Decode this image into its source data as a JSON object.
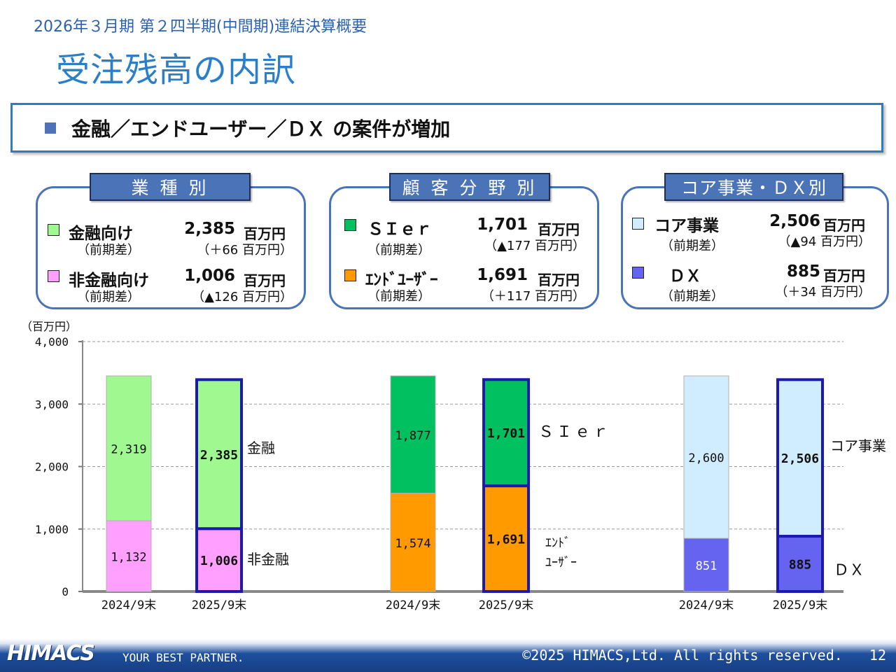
{
  "header": {
    "subtitle": "2026年３月期 第２四半期(中間期)連結決算概要",
    "title": "受注残高の内訳"
  },
  "headline": {
    "text": "金融／エンドユーザー／ＤＸ の案件が増加"
  },
  "panels": [
    {
      "tab": "業 種 別",
      "items": [
        {
          "label": "金融向け",
          "sub": "（前期差）",
          "value": "2,385",
          "unit": "百万円",
          "diff": "（＋66 百万円）",
          "color": "#a0f890"
        },
        {
          "label": "非金融向け",
          "sub": "（前期差）",
          "value": "1,006",
          "unit": "百万円",
          "diff": "（▲126 百万円）",
          "color": "#ffa0ff"
        }
      ]
    },
    {
      "tab": "顧 客 分 野 別",
      "items": [
        {
          "label": "ＳＩｅｒ",
          "sub": "（前期差）",
          "value": "1,701",
          "unit": "百万円",
          "diff": "（▲177 百万円）",
          "color": "#00c060"
        },
        {
          "label": "ｴﾝﾄﾞﾕｰｻﾞｰ",
          "sub": "（前期差）",
          "value": "1,691",
          "unit": "百万円",
          "diff": "（＋117 百万円）",
          "color": "#ff9a00"
        }
      ]
    },
    {
      "tab": "コア事業・ＤＸ別",
      "items": [
        {
          "label": "コア事業",
          "sub": "（前期差）",
          "value": "2,506",
          "unit": "百万円",
          "diff": "（▲94 百万円）",
          "color": "#d0ecff"
        },
        {
          "label": "ＤＸ",
          "sub": "（前期差）",
          "value": "885",
          "unit": "百万円",
          "diff": "（＋34 百万円）",
          "color": "#6464f0"
        }
      ]
    }
  ],
  "chart_data": {
    "type": "bar",
    "stacked": true,
    "ylabel": "（百万円）",
    "ylim": [
      0,
      4000
    ],
    "yticks": [
      0,
      1000,
      2000,
      3000,
      4000
    ],
    "ytick_labels": [
      "0",
      "1,000",
      "2,000",
      "3,000",
      "4,000"
    ],
    "grid": true,
    "groups": [
      {
        "name": "業種別",
        "categories": [
          "2024/9末",
          "2025/9末"
        ],
        "series": [
          {
            "name": "非金融",
            "values": [
              1132,
              1006
            ],
            "labels": [
              "1,132",
              "1,006"
            ],
            "color": "#ffa0ff"
          },
          {
            "name": "金融",
            "values": [
              2319,
              2385
            ],
            "labels": [
              "2,319",
              "2,385"
            ],
            "color": "#a0f890"
          }
        ]
      },
      {
        "name": "顧客分野別",
        "categories": [
          "2024/9末",
          "2025/9末"
        ],
        "series": [
          {
            "name": "ｴﾝﾄﾞ ﾕｰｻﾞｰ",
            "values": [
              1574,
              1691
            ],
            "labels": [
              "1,574",
              "1,691"
            ],
            "color": "#ff9a00"
          },
          {
            "name": "ＳＩｅｒ",
            "values": [
              1877,
              1701
            ],
            "labels": [
              "1,877",
              "1,701"
            ],
            "color": "#00c060"
          }
        ]
      },
      {
        "name": "コア事業・ＤＸ別",
        "categories": [
          "2024/9末",
          "2025/9末"
        ],
        "series": [
          {
            "name": "ＤＸ",
            "values": [
              851,
              885
            ],
            "labels": [
              "851",
              "885"
            ],
            "color": "#6464f0"
          },
          {
            "name": "コア事業",
            "values": [
              2600,
              2506
            ],
            "labels": [
              "2,600",
              "2,506"
            ],
            "color": "#d0ecff"
          }
        ]
      }
    ],
    "highlight_color": "#1a1ab0"
  },
  "footer": {
    "logo": "HIMACS",
    "tagline": "YOUR BEST PARTNER.",
    "copyright": "©2025 HIMACS,Ltd. All rights reserved.",
    "page": "12"
  }
}
